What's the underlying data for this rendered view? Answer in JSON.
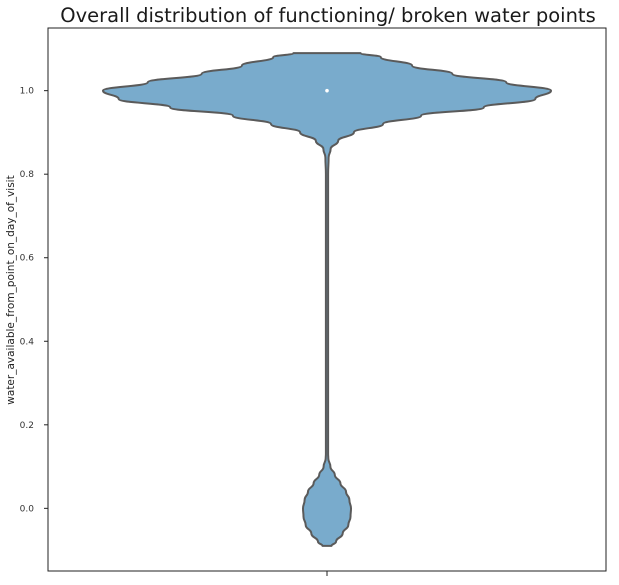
{
  "chart_data": {
    "type": "violin",
    "title": "Overall distribution of functioning/ broken water points",
    "xlabel": "",
    "ylabel": "water_available_from_point_on_day_of_visit",
    "ylim": [
      -0.15,
      1.15
    ],
    "yticks": [
      0.0,
      0.2,
      0.4,
      0.6,
      0.8,
      1.0
    ],
    "ytick_labels": [
      "0.0",
      "0.2",
      "0.4",
      "0.6",
      "0.8",
      "1.0"
    ],
    "xticks": [
      ""
    ],
    "median": 1.0,
    "fill_color": "#79abcc",
    "edge_color": "#5a5a5a",
    "median_color": "#ffffff",
    "density_profile": {
      "y": [
        -0.09,
        -0.08,
        -0.06,
        -0.04,
        -0.02,
        0.0,
        0.02,
        0.04,
        0.06,
        0.08,
        0.1,
        0.12,
        0.13,
        0.2,
        0.4,
        0.6,
        0.8,
        0.84,
        0.86,
        0.88,
        0.9,
        0.92,
        0.94,
        0.96,
        0.98,
        1.0,
        1.02,
        1.04,
        1.06,
        1.08,
        1.09
      ],
      "relative_width": [
        0.02,
        0.04,
        0.07,
        0.095,
        0.105,
        0.107,
        0.1,
        0.085,
        0.06,
        0.035,
        0.015,
        0.006,
        0.005,
        0.005,
        0.005,
        0.005,
        0.005,
        0.007,
        0.016,
        0.05,
        0.12,
        0.25,
        0.42,
        0.7,
        0.93,
        1.0,
        0.8,
        0.56,
        0.38,
        0.24,
        0.15
      ]
    }
  }
}
